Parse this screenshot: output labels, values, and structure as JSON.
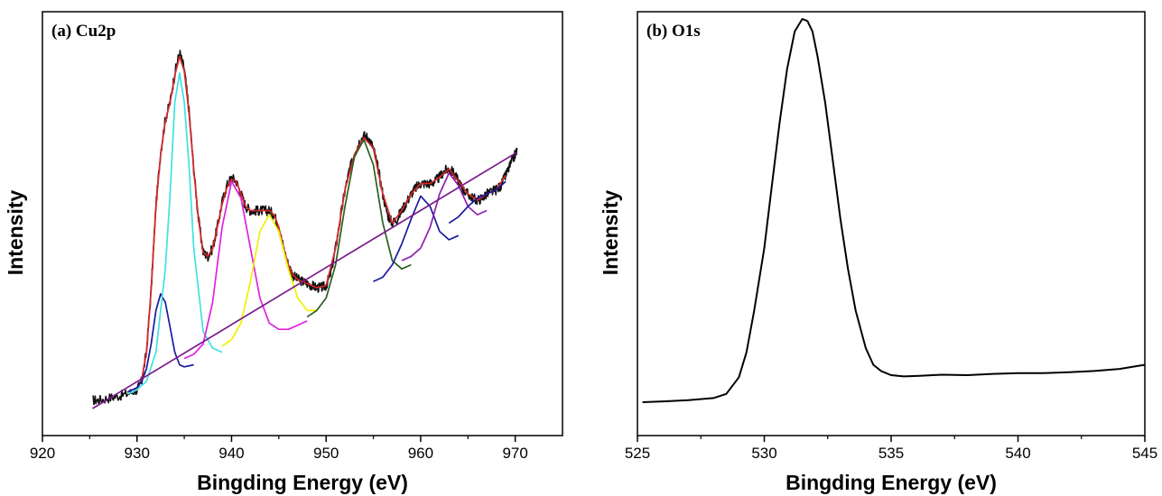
{
  "chart_data": [
    {
      "type": "line",
      "title": "(a) Cu2p",
      "xlabel": "Bingding Energy (eV)",
      "ylabel": "Intensity",
      "xlim": [
        920,
        975
      ],
      "ylim": [
        0,
        100
      ],
      "xticks": [
        920,
        930,
        940,
        950,
        960,
        970
      ],
      "xtick_labels": [
        "920",
        "930",
        "940",
        "950",
        "960",
        "970"
      ],
      "y_tick_labels_shown": false,
      "grid": false,
      "legend": "none",
      "series": [
        {
          "color": "#111111",
          "role": "raw",
          "x": [
            925.3,
            926,
            927,
            928,
            929,
            930,
            930.5,
            931,
            931.5,
            932,
            932.5,
            933,
            933.5,
            934,
            934.5,
            935,
            935.5,
            936,
            936.5,
            937,
            937.5,
            938,
            938.5,
            939,
            939.5,
            940,
            940.5,
            941,
            941.5,
            942,
            942.5,
            943,
            943.5,
            944,
            944.5,
            945,
            945.5,
            946,
            946.5,
            947,
            947.5,
            948,
            948.5,
            949,
            949.5,
            950,
            950.5,
            951,
            951.5,
            952,
            952.5,
            953,
            953.5,
            954,
            954.5,
            955,
            955.5,
            956,
            956.5,
            957,
            957.5,
            958,
            958.5,
            959,
            959.5,
            960,
            960.5,
            961,
            961.5,
            962,
            962.5,
            963,
            963.5,
            964,
            964.5,
            965,
            965.5,
            966,
            966.5,
            967,
            967.5,
            968,
            968.5,
            969,
            969.5,
            970,
            970.2
          ],
          "y": [
            8.5,
            8.5,
            9,
            9.5,
            10,
            11,
            13,
            20,
            35,
            55,
            68,
            76,
            80,
            87,
            92,
            88,
            78,
            64,
            52,
            44,
            43,
            45,
            50,
            56,
            60,
            62,
            61,
            58,
            55,
            54,
            54,
            54,
            54,
            54,
            53,
            50,
            45,
            41,
            38.5,
            37.5,
            37,
            36.5,
            36,
            35.5,
            35.5,
            36,
            39,
            45,
            52,
            59,
            64,
            67.5,
            70.5,
            72,
            71.5,
            69,
            64,
            58,
            53,
            51,
            52,
            54,
            56,
            58,
            59.5,
            60.5,
            60.5,
            60.5,
            61,
            62,
            63.5,
            64,
            63,
            61,
            59,
            58,
            57,
            56.5,
            57,
            58,
            58.5,
            59,
            60,
            62.5,
            65,
            67.5,
            68.5
          ]
        },
        {
          "color": "#d62728",
          "role": "envelope",
          "x": [
            929,
            930,
            930.5,
            931,
            931.5,
            932,
            932.5,
            933,
            933.5,
            934,
            934.5,
            935,
            935.5,
            936,
            936.5,
            937,
            937.5,
            938,
            938.5,
            939,
            939.5,
            940,
            940.5,
            941,
            941.5,
            942,
            942.5,
            943,
            943.5,
            944,
            944.5,
            945,
            945.5,
            946,
            946.5,
            947,
            947.5,
            948,
            949,
            950,
            951,
            952,
            953,
            954,
            955,
            956,
            957,
            958,
            959,
            960,
            961,
            962,
            963,
            964,
            965,
            966,
            967,
            968,
            969
          ],
          "y": [
            10,
            11,
            13.5,
            20,
            35,
            55,
            67.5,
            75.5,
            80,
            86.5,
            91,
            87.5,
            77.5,
            64,
            52,
            44,
            43,
            45,
            50,
            55.5,
            59.5,
            61.5,
            61,
            58,
            55,
            54,
            54,
            54,
            54,
            54,
            53,
            50,
            45,
            41,
            38.5,
            37.5,
            37,
            36.5,
            35.5,
            36,
            45,
            59,
            67.5,
            71.5,
            69,
            58,
            51,
            54,
            58,
            60.5,
            60.5,
            62,
            64,
            61,
            58,
            56.5,
            58,
            59,
            62.5
          ]
        },
        {
          "color": "#1a1aa0",
          "role": "component",
          "x": [
            929,
            930,
            930.5,
            931,
            931.5,
            932,
            932.5,
            933,
            933.5,
            934,
            934.5,
            935,
            936
          ],
          "y": [
            10.5,
            11.5,
            13,
            16,
            22,
            30,
            34,
            32,
            26,
            20,
            17,
            16.5,
            17
          ]
        },
        {
          "color": "#40e0e0",
          "role": "component",
          "x": [
            929,
            930,
            931,
            932,
            933,
            933.5,
            934,
            934.5,
            935,
            935.5,
            936,
            937,
            938,
            939
          ],
          "y": [
            10,
            11,
            13,
            20,
            40,
            58,
            80,
            87,
            80,
            65,
            45,
            25,
            21,
            20
          ]
        },
        {
          "color": "#e020e0",
          "role": "component",
          "x": [
            935,
            936,
            937,
            938,
            939,
            940,
            941,
            942,
            943,
            944,
            945,
            946,
            947,
            948
          ],
          "y": [
            18.5,
            19.5,
            22,
            32,
            50,
            61,
            57,
            45,
            33,
            27,
            25.5,
            25.5,
            26.5,
            27.5
          ]
        },
        {
          "color": "#f0f000",
          "role": "component",
          "x": [
            939,
            940,
            941,
            942,
            943,
            944,
            945,
            946,
            947,
            948,
            949
          ],
          "y": [
            21.5,
            23,
            27,
            37,
            49,
            53,
            49,
            40,
            33,
            30,
            30
          ]
        },
        {
          "color": "#2a5f20",
          "role": "component",
          "x": [
            948,
            949,
            950,
            951,
            952,
            953,
            954,
            955,
            956,
            957,
            958,
            959
          ],
          "y": [
            28.5,
            30,
            33,
            41,
            55,
            67,
            71,
            65,
            51,
            42,
            40,
            41
          ]
        },
        {
          "color": "#1a1aa0",
          "role": "component",
          "x": [
            955,
            956,
            957,
            958,
            959,
            960,
            961,
            962,
            963,
            964
          ],
          "y": [
            37,
            38,
            41,
            46,
            52,
            57.5,
            55,
            49,
            47,
            48
          ]
        },
        {
          "color": "#9020b0",
          "role": "component",
          "x": [
            958,
            959,
            960,
            961,
            962,
            963,
            964,
            965,
            966,
            967
          ],
          "y": [
            42,
            43,
            45,
            50,
            58,
            63,
            60,
            55,
            53,
            54
          ]
        },
        {
          "color": "#1a1aa0",
          "role": "component",
          "x": [
            963,
            964,
            965,
            966,
            967,
            968,
            969
          ],
          "y": [
            51,
            52.5,
            55,
            57,
            58,
            59,
            61
          ]
        },
        {
          "color": "#7a1a8a",
          "role": "baseline",
          "x": [
            925.3,
            970.2
          ],
          "y": [
            6.5,
            68
          ]
        }
      ]
    },
    {
      "type": "line",
      "title": "(b) O1s",
      "xlabel": "Bingding Energy (eV)",
      "ylabel": "Intensity",
      "xlim": [
        525,
        545
      ],
      "ylim": [
        0,
        100
      ],
      "xticks": [
        525,
        530,
        535,
        540,
        545
      ],
      "xtick_labels": [
        "525",
        "530",
        "535",
        "540",
        "545"
      ],
      "y_tick_labels_shown": false,
      "grid": false,
      "legend": "none",
      "series": [
        {
          "color": "#000000",
          "x": [
            525.2,
            526,
            527,
            528,
            528.5,
            529,
            529.3,
            529.6,
            530,
            530.3,
            530.6,
            530.9,
            531.2,
            531.5,
            531.7,
            531.9,
            532.1,
            532.4,
            532.7,
            533,
            533.3,
            533.6,
            534,
            534.3,
            534.6,
            535,
            535.5,
            536,
            537,
            538,
            539,
            540,
            541,
            542,
            543,
            544,
            545
          ],
          "y": [
            8,
            8.2,
            8.5,
            9,
            10,
            14,
            20,
            30,
            45,
            60,
            75,
            88,
            97,
            100,
            99.5,
            97,
            91,
            80,
            66,
            52,
            40,
            30,
            21,
            17,
            15.5,
            14.5,
            14.2,
            14.3,
            14.6,
            14.5,
            14.8,
            15,
            15,
            15.2,
            15.5,
            16,
            17
          ]
        }
      ]
    }
  ]
}
